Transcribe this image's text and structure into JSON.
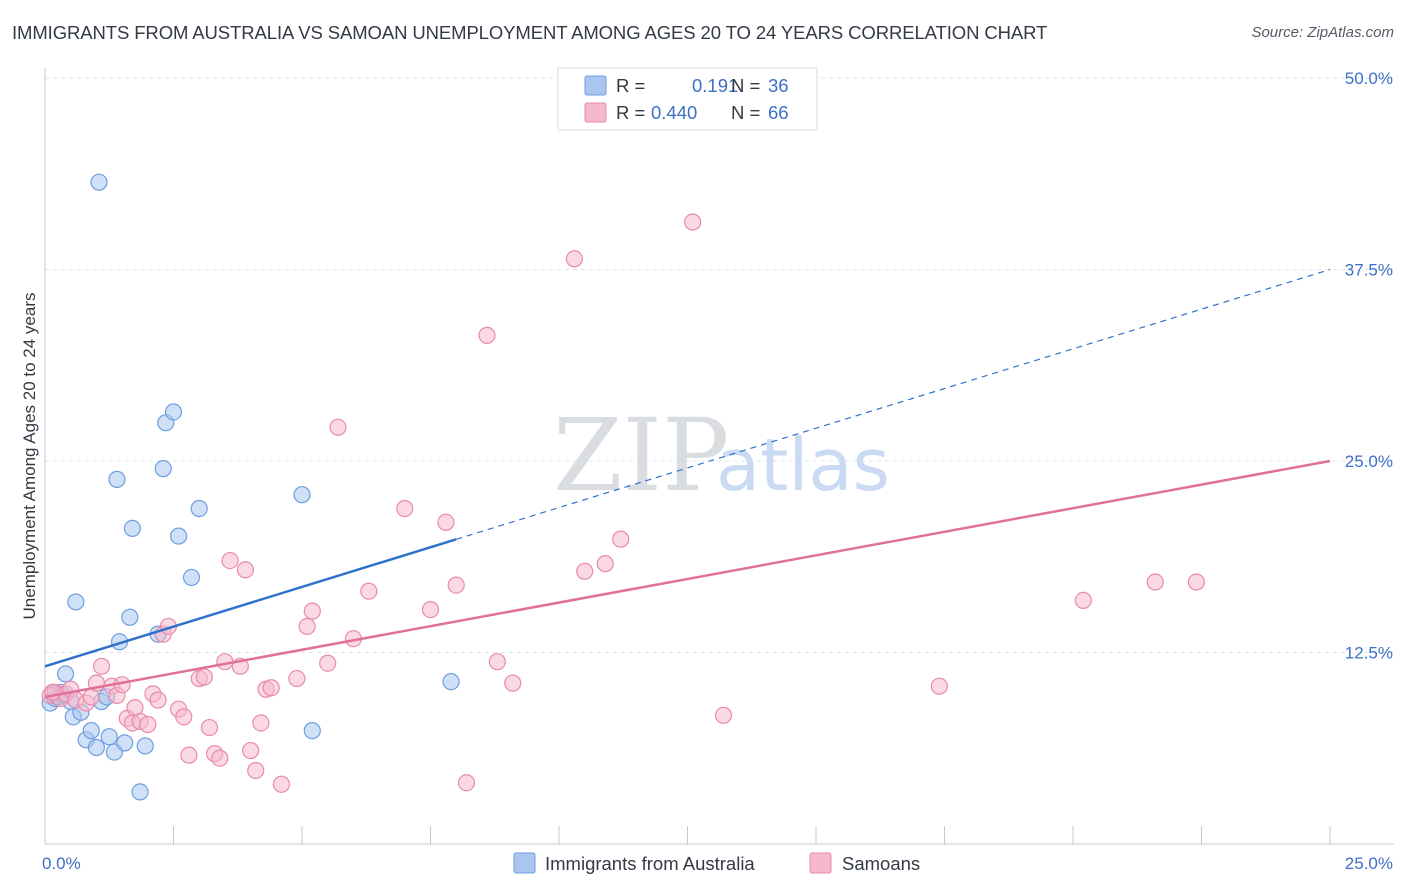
{
  "header": {
    "title": "IMMIGRANTS FROM AUSTRALIA VS SAMOAN UNEMPLOYMENT AMONG AGES 20 TO 24 YEARS CORRELATION CHART",
    "source": "Source: ZipAtlas.com"
  },
  "watermark": {
    "zip": "ZIP",
    "atlas": "atlas"
  },
  "colors": {
    "blue_fill": "#a9c6f0",
    "blue_stroke": "#6e9ee0",
    "blue_line": "#2f72cc",
    "pink_fill": "#f5b9cc",
    "pink_stroke": "#e98aaa",
    "pink_line": "#e0709a",
    "grid": "#dfe3e8",
    "tick_label": "#3d6fc7"
  },
  "chart_data": {
    "type": "scatter",
    "title": "IMMIGRANTS FROM AUSTRALIA VS SAMOAN UNEMPLOYMENT AMONG AGES 20 TO 24 YEARS CORRELATION CHART",
    "xlabel": "",
    "ylabel": "Unemployment Among Ages 20 to 24 years",
    "xlim": [
      0,
      25
    ],
    "ylim": [
      0,
      50
    ],
    "x_tick_labels": [
      "0.0%",
      "25.0%"
    ],
    "y_ticks": [
      12.5,
      25.0,
      37.5,
      50.0
    ],
    "y_tick_labels": [
      "12.5%",
      "25.0%",
      "37.5%",
      "50.0%"
    ],
    "grid": true,
    "legend": {
      "placement": "top-center",
      "entries": [
        {
          "r_label": "R =",
          "r_value": "0.191",
          "n_label": "N =",
          "n_value": "36"
        },
        {
          "r_label": "R =",
          "r_value": "0.440",
          "n_label": "N =",
          "n_value": "66"
        }
      ]
    },
    "series": [
      {
        "name": "Immigrants from Australia",
        "color": "#a9c6f0",
        "trend": {
          "x0": 0,
          "y0": 11.6,
          "x1": 25,
          "y1": 37.5,
          "solid_until": 8
        },
        "points": [
          [
            0.1,
            9.2
          ],
          [
            0.15,
            9.8
          ],
          [
            0.2,
            9.5
          ],
          [
            0.3,
            9.9
          ],
          [
            0.4,
            11.1
          ],
          [
            0.5,
            9.3
          ],
          [
            0.55,
            8.3
          ],
          [
            0.6,
            15.8
          ],
          [
            0.7,
            8.6
          ],
          [
            0.8,
            6.8
          ],
          [
            0.9,
            7.4
          ],
          [
            1.0,
            6.3
          ],
          [
            1.05,
            43.2
          ],
          [
            1.1,
            9.3
          ],
          [
            1.2,
            9.6
          ],
          [
            1.25,
            7.0
          ],
          [
            1.35,
            6.0
          ],
          [
            1.4,
            23.8
          ],
          [
            1.45,
            13.2
          ],
          [
            1.55,
            6.6
          ],
          [
            1.65,
            14.8
          ],
          [
            1.7,
            20.6
          ],
          [
            1.85,
            3.4
          ],
          [
            1.95,
            6.4
          ],
          [
            2.2,
            13.7
          ],
          [
            2.3,
            24.5
          ],
          [
            2.35,
            27.5
          ],
          [
            2.5,
            28.2
          ],
          [
            2.6,
            20.1
          ],
          [
            2.85,
            17.4
          ],
          [
            3.0,
            21.9
          ],
          [
            5.0,
            22.8
          ],
          [
            5.2,
            7.4
          ],
          [
            7.9,
            10.6
          ],
          [
            0.25,
            9.6
          ],
          [
            0.35,
            9.7
          ]
        ]
      },
      {
        "name": "Samoans",
        "color": "#f5b9cc",
        "trend": {
          "x0": 0,
          "y0": 9.6,
          "x1": 25,
          "y1": 25.0,
          "solid_until": 25
        },
        "points": [
          [
            0.1,
            9.7
          ],
          [
            0.2,
            9.9
          ],
          [
            0.3,
            9.5
          ],
          [
            0.4,
            9.8
          ],
          [
            0.5,
            10.1
          ],
          [
            0.6,
            9.4
          ],
          [
            0.8,
            9.2
          ],
          [
            0.9,
            9.6
          ],
          [
            1.0,
            10.5
          ],
          [
            1.1,
            11.6
          ],
          [
            1.3,
            10.3
          ],
          [
            1.4,
            9.7
          ],
          [
            1.5,
            10.4
          ],
          [
            1.6,
            8.2
          ],
          [
            1.7,
            7.9
          ],
          [
            1.75,
            8.9
          ],
          [
            1.85,
            8.0
          ],
          [
            2.0,
            7.8
          ],
          [
            2.1,
            9.8
          ],
          [
            2.2,
            9.4
          ],
          [
            2.3,
            13.7
          ],
          [
            2.4,
            14.2
          ],
          [
            2.6,
            8.8
          ],
          [
            2.7,
            8.3
          ],
          [
            2.8,
            5.8
          ],
          [
            3.0,
            10.8
          ],
          [
            3.1,
            10.9
          ],
          [
            3.2,
            7.6
          ],
          [
            3.3,
            5.9
          ],
          [
            3.4,
            5.6
          ],
          [
            3.5,
            11.9
          ],
          [
            3.6,
            18.5
          ],
          [
            3.8,
            11.6
          ],
          [
            3.9,
            17.9
          ],
          [
            4.0,
            6.1
          ],
          [
            4.1,
            4.8
          ],
          [
            4.2,
            7.9
          ],
          [
            4.3,
            10.1
          ],
          [
            4.4,
            10.2
          ],
          [
            4.6,
            3.9
          ],
          [
            4.9,
            10.8
          ],
          [
            5.1,
            14.2
          ],
          [
            5.2,
            15.2
          ],
          [
            5.5,
            11.8
          ],
          [
            5.7,
            27.2
          ],
          [
            6.0,
            13.4
          ],
          [
            6.3,
            16.5
          ],
          [
            7.0,
            21.9
          ],
          [
            7.5,
            15.3
          ],
          [
            7.8,
            21.0
          ],
          [
            8.0,
            16.9
          ],
          [
            8.2,
            4.0
          ],
          [
            8.6,
            33.2
          ],
          [
            8.8,
            11.9
          ],
          [
            9.1,
            10.5
          ],
          [
            10.3,
            38.2
          ],
          [
            10.5,
            17.8
          ],
          [
            10.9,
            18.3
          ],
          [
            11.2,
            19.9
          ],
          [
            12.6,
            40.6
          ],
          [
            13.2,
            8.4
          ],
          [
            17.4,
            10.3
          ],
          [
            20.2,
            15.9
          ],
          [
            21.6,
            17.1
          ],
          [
            22.4,
            17.1
          ],
          [
            0.15,
            9.9
          ]
        ]
      }
    ]
  },
  "bottom_legend": [
    {
      "label": "Immigrants from Australia"
    },
    {
      "label": "Samoans"
    }
  ]
}
